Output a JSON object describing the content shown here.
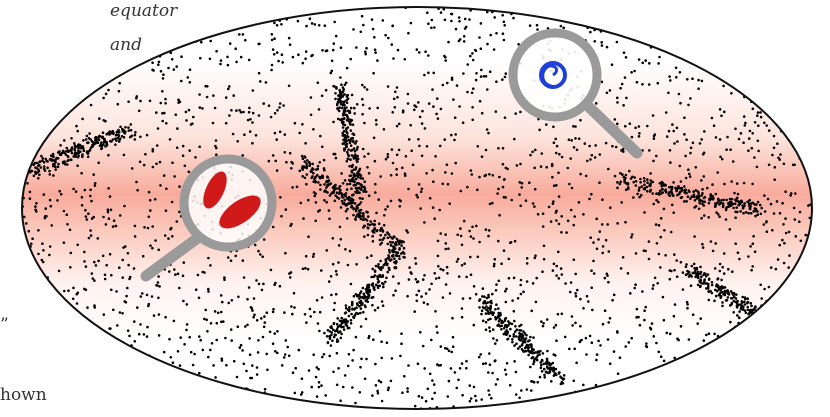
{
  "texts": {
    "top_line_1": "equator",
    "top_line_2": "and",
    "bottom_line_1": "”",
    "bottom_line_2": "hown"
  }
}
